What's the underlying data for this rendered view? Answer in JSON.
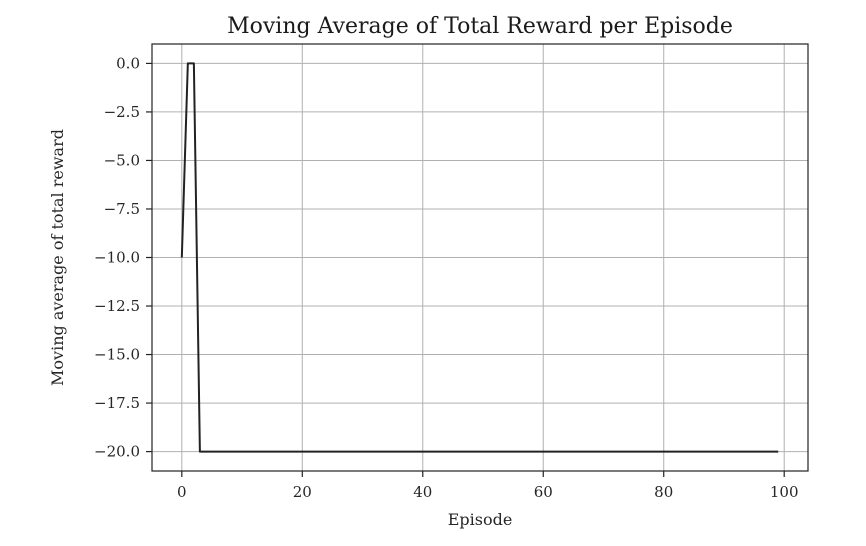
{
  "chart_data": {
    "type": "line",
    "title": "Moving Average of Total Reward per Episode",
    "xlabel": "Episode",
    "ylabel": "Moving average of total reward",
    "xlim": [
      -4.95,
      103.95
    ],
    "ylim": [
      -21.0,
      1.0
    ],
    "xticks": [
      0,
      20,
      40,
      60,
      80,
      100
    ],
    "xtick_labels": [
      "0",
      "20",
      "40",
      "60",
      "80",
      "100"
    ],
    "yticks": [
      0.0,
      -2.5,
      -5.0,
      -7.5,
      -10.0,
      -12.5,
      -15.0,
      -17.5,
      -20.0
    ],
    "ytick_labels": [
      "0.0",
      "−2.5",
      "−5.0",
      "−7.5",
      "−10.0",
      "−12.5",
      "−15.0",
      "−17.5",
      "−20.0"
    ],
    "grid": true,
    "series": [
      {
        "color": "#222222",
        "x": [
          0,
          1,
          2,
          3,
          99
        ],
        "y": [
          -10,
          0,
          0,
          -20,
          -20
        ]
      }
    ]
  }
}
